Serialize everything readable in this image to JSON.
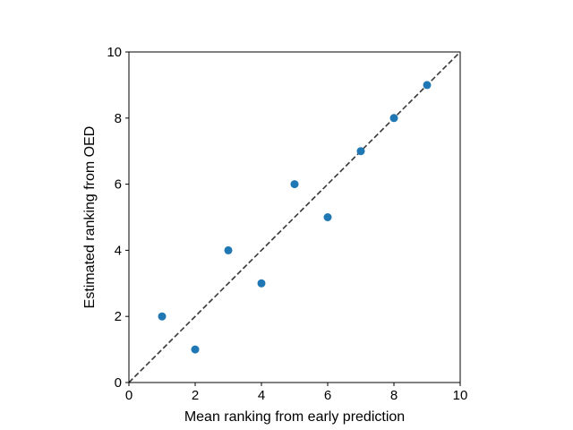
{
  "chart_data": {
    "type": "scatter",
    "title": "",
    "xlabel": "Mean ranking from early prediction",
    "ylabel": "Estimated ranking from OED",
    "xlim": [
      0,
      10
    ],
    "ylim": [
      0,
      10
    ],
    "xticks": [
      "0",
      "2",
      "4",
      "6",
      "8",
      "10"
    ],
    "yticks": [
      "0",
      "2",
      "4",
      "6",
      "8",
      "10"
    ],
    "grid": false,
    "legend": "none",
    "points": [
      {
        "x": 1,
        "y": 2
      },
      {
        "x": 2,
        "y": 1
      },
      {
        "x": 3,
        "y": 4
      },
      {
        "x": 4,
        "y": 3
      },
      {
        "x": 5,
        "y": 6
      },
      {
        "x": 6,
        "y": 5
      },
      {
        "x": 7,
        "y": 7
      },
      {
        "x": 8,
        "y": 8
      },
      {
        "x": 9,
        "y": 9
      }
    ],
    "reference_line": {
      "style": "dashed",
      "from": [
        0,
        0
      ],
      "to": [
        10,
        10
      ]
    },
    "colors": {
      "points": "#1f77b4",
      "reference_line": "#404040",
      "axes": "#000000"
    }
  }
}
